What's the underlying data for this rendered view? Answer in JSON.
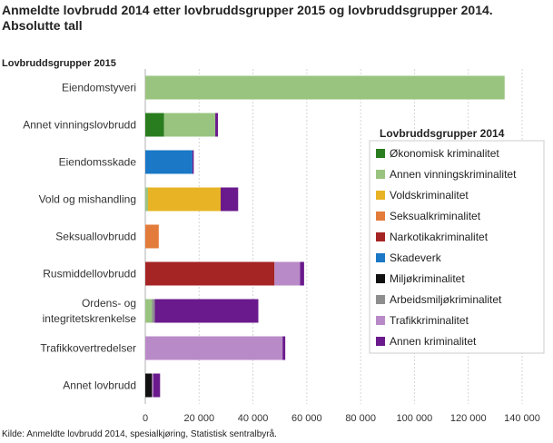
{
  "title_line1": "Anmeldte lovbrudd 2014 etter lovbruddsgrupper 2015 og lovbruddsgrupper 2014.",
  "title_line2": "Absolutte tall",
  "source": "Kilde: Anmeldte lovbrudd  2014, spesialkjøring, Statistisk sentralbyrå.",
  "chart_data": {
    "type": "bar",
    "orientation": "horizontal",
    "stacked": true,
    "title": "Anmeldte lovbrudd 2014 etter lovbruddsgrupper 2015 og lovbruddsgrupper 2014. Absolutte tall",
    "ylabel": "Lovbruddsgrupper  2015",
    "xlabel": "",
    "xlim": [
      0,
      140000
    ],
    "xticks": [
      "0",
      "20 000",
      "40 000",
      "60 000",
      "80 000",
      "100 000",
      "120 000",
      "140 000"
    ],
    "grid": true,
    "legend_title": "Lovbruddsgrupper  2014",
    "legend_position": "right",
    "categories": [
      [
        "Eiendomstyveri"
      ],
      [
        "Annet vinningslovbrudd"
      ],
      [
        "Eiendomsskade"
      ],
      [
        "Vold og mishandling"
      ],
      [
        "Seksuallovbrudd"
      ],
      [
        "Rusmiddellovbrudd"
      ],
      [
        "Ordens- og",
        "integritetskrenkelse"
      ],
      [
        "Trafikkovertredelser"
      ],
      [
        "Annet lovbrudd"
      ]
    ],
    "series": [
      {
        "name": "Økonomisk kriminalitet",
        "color": "#2a7d1e",
        "values": [
          0,
          7000,
          0,
          0,
          0,
          0,
          0,
          0,
          0
        ]
      },
      {
        "name": "Annen vinningskriminalitet",
        "color": "#99c480",
        "values": [
          133500,
          19000,
          0,
          1000,
          0,
          0,
          2500,
          0,
          0
        ]
      },
      {
        "name": "Voldskriminalitet",
        "color": "#e8b425",
        "values": [
          0,
          0,
          0,
          27000,
          0,
          0,
          0,
          0,
          0
        ]
      },
      {
        "name": "Seksualkriminalitet",
        "color": "#e37b3a",
        "values": [
          0,
          0,
          0,
          0,
          5000,
          0,
          0,
          0,
          0
        ]
      },
      {
        "name": "Narkotikakriminalitet",
        "color": "#a52524",
        "values": [
          0,
          0,
          0,
          0,
          0,
          48000,
          0,
          0,
          0
        ]
      },
      {
        "name": "Skadeverk",
        "color": "#1a78c6",
        "values": [
          0,
          0,
          17500,
          0,
          0,
          0,
          0,
          0,
          0
        ]
      },
      {
        "name": "Miljøkriminalitet",
        "color": "#111111",
        "values": [
          0,
          0,
          0,
          0,
          0,
          0,
          0,
          0,
          2500
        ]
      },
      {
        "name": "Arbeidsmiljøkriminalitet",
        "color": "#8e8e8e",
        "values": [
          0,
          0,
          0,
          0,
          0,
          0,
          1000,
          0,
          0
        ]
      },
      {
        "name": "Trafikkriminalitet",
        "color": "#b98ac8",
        "values": [
          0,
          0,
          0,
          0,
          0,
          9500,
          0,
          51000,
          500
        ]
      },
      {
        "name": "Annen kriminalitet",
        "color": "#6a1a8c",
        "values": [
          0,
          1000,
          500,
          6500,
          0,
          1500,
          38500,
          1000,
          2500
        ]
      }
    ]
  }
}
